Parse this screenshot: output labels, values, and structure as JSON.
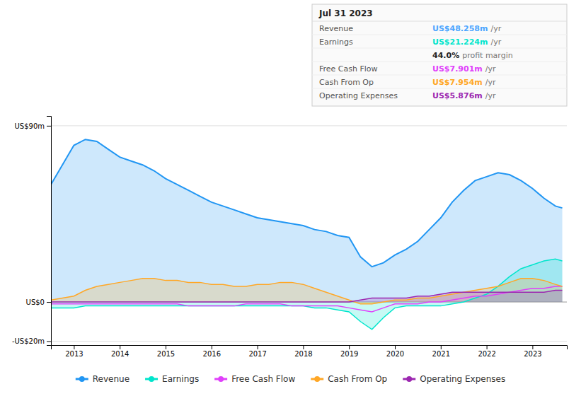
{
  "chart_data": {
    "type": "area",
    "x": [
      2012.5,
      2013.0,
      2013.25,
      2013.5,
      2013.75,
      2014.0,
      2014.25,
      2014.5,
      2014.75,
      2015.0,
      2015.25,
      2015.5,
      2015.75,
      2016.0,
      2016.25,
      2016.5,
      2016.75,
      2017.0,
      2017.25,
      2017.5,
      2017.75,
      2018.0,
      2018.25,
      2018.5,
      2018.75,
      2019.0,
      2019.25,
      2019.5,
      2019.75,
      2020.0,
      2020.25,
      2020.5,
      2020.75,
      2021.0,
      2021.25,
      2021.5,
      2021.75,
      2022.0,
      2022.25,
      2022.5,
      2022.75,
      2023.0,
      2023.25,
      2023.5,
      2023.65
    ],
    "series": [
      {
        "name": "Revenue",
        "type": "area",
        "color": "#2196f3",
        "values": [
          60,
          80,
          83,
          82,
          78,
          74,
          72,
          70,
          67,
          63,
          60,
          57,
          54,
          51,
          49,
          47,
          45,
          43,
          42,
          41,
          40,
          39,
          37,
          36,
          34,
          33,
          23,
          18,
          20,
          24,
          27,
          31,
          37,
          43,
          51,
          57,
          62,
          64,
          66,
          65,
          62,
          58,
          53,
          49,
          48
        ]
      },
      {
        "name": "Earnings",
        "type": "area",
        "color": "#00e5cc",
        "values": [
          -3,
          -3,
          -2,
          -2,
          -2,
          -2,
          -2,
          -2,
          -2,
          -2,
          -2,
          -2,
          -2,
          -2,
          -2,
          -2,
          -2,
          -2,
          -2,
          -2,
          -2,
          -2,
          -3,
          -3,
          -4,
          -5,
          -10,
          -14,
          -8,
          -3,
          -2,
          -2,
          -2,
          -2,
          -1,
          0,
          2,
          4,
          8,
          13,
          17,
          19,
          21,
          22,
          21
        ]
      },
      {
        "name": "Free Cash Flow",
        "type": "line",
        "color": "#e040fb",
        "values": [
          -1,
          -1,
          -1,
          -1,
          -1,
          -1,
          -1,
          -1,
          -1,
          -1,
          -1,
          -2,
          -2,
          -2,
          -2,
          -2,
          -1,
          -1,
          -1,
          -1,
          -2,
          -2,
          -2,
          -2,
          -2,
          -3,
          -4,
          -5,
          -3,
          -1,
          -1,
          -1,
          0,
          0,
          1,
          2,
          3,
          3,
          4,
          5,
          6,
          7,
          7,
          8,
          8
        ]
      },
      {
        "name": "Cash From Op",
        "type": "area",
        "color": "#ffa726",
        "values": [
          1,
          3,
          6,
          8,
          9,
          10,
          11,
          12,
          12,
          11,
          11,
          10,
          10,
          9,
          9,
          8,
          8,
          9,
          9,
          10,
          10,
          9,
          7,
          5,
          3,
          1,
          -1,
          -1,
          0,
          1,
          1,
          2,
          2,
          3,
          4,
          5,
          6,
          7,
          8,
          10,
          12,
          12,
          11,
          9,
          8
        ]
      },
      {
        "name": "Operating Expenses",
        "type": "area",
        "color": "#9c27b0",
        "values": [
          0,
          0,
          0,
          0,
          0,
          0,
          0,
          0,
          0,
          0,
          0,
          0,
          0,
          0,
          0,
          0,
          0,
          0,
          0,
          0,
          0,
          0,
          0,
          0,
          0,
          0,
          1,
          2,
          2,
          2,
          2,
          3,
          3,
          4,
          5,
          5,
          5,
          5,
          5,
          5,
          5,
          5,
          5,
          6,
          6
        ]
      }
    ],
    "xlim": [
      2012.5,
      2023.75
    ],
    "xticks": [
      2013,
      2014,
      2015,
      2016,
      2017,
      2018,
      2019,
      2020,
      2021,
      2022,
      2023
    ],
    "ylim": [
      -22,
      95
    ],
    "yticks": [
      {
        "value": 90,
        "label": "US$90m"
      },
      {
        "value": 0,
        "label": "US$0"
      },
      {
        "value": -20,
        "label": "-US$20m"
      }
    ],
    "grid": true,
    "legend": "bottom",
    "annotations": [
      {
        "text": "Jul 31 2023"
      },
      {
        "label": "Revenue",
        "text": "US$48.258m",
        "suffix": "/yr",
        "color": "#4da6ff"
      },
      {
        "label": "Earnings",
        "text": "US$21.224m",
        "suffix": "/yr",
        "color": "#00e5cc"
      },
      {
        "text": "44.0%",
        "suffix": "profit margin"
      },
      {
        "label": "Free Cash Flow",
        "text": "US$7.901m",
        "suffix": "/yr",
        "color": "#e040fb"
      },
      {
        "label": "Cash From Op",
        "text": "US$7.954m",
        "suffix": "/yr",
        "color": "#ffa726"
      },
      {
        "label": "Operating Expenses",
        "text": "US$5.876m",
        "suffix": "/yr",
        "color": "#9c27b0"
      }
    ]
  }
}
